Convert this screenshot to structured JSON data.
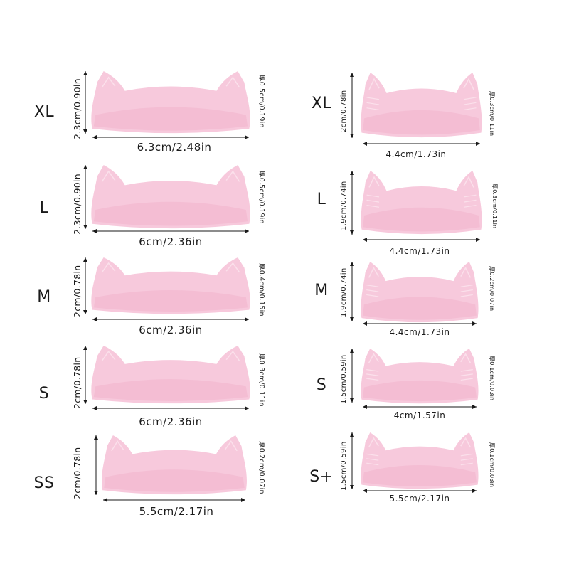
{
  "colors": {
    "pad_fill": "#f7c9dc",
    "pad_shade": "#f2b3cc",
    "pad_light": "#fbe0eb",
    "line": "#1a1a1a"
  },
  "left_items": [
    {
      "size": "XL",
      "width": "6.3cm/2.48in",
      "height": "2.3cm/0.90in",
      "thickness": "厚0.5cm/0.19in",
      "mark": "XL"
    },
    {
      "size": "L",
      "width": "6cm/2.36in",
      "height": "2.3cm/0.90in",
      "thickness": "厚0.5cm/0.19in",
      "mark": "L"
    },
    {
      "size": "M",
      "width": "6cm/2.36in",
      "height": "2cm/0.78in",
      "thickness": "厚0.4cm/0.15in",
      "mark": "M"
    },
    {
      "size": "S",
      "width": "6cm/2.36in",
      "height": "2cm/0.78in",
      "thickness": "厚0.3cm/0.11in",
      "mark": "S"
    },
    {
      "size": "SS",
      "width": "5.5cm/2.17in",
      "height": "2cm/0.78in",
      "thickness": "厚0.2cm/0.07in",
      "mark": "SS"
    }
  ],
  "right_items": [
    {
      "size": "XL",
      "width": "4.4cm/1.73in",
      "height": "2cm/0.78in",
      "thickness": "厚0.3cm/0.11in",
      "mark": "XL"
    },
    {
      "size": "L",
      "width": "4.4cm/1.73in",
      "height": "1.9cm/0.74in",
      "thickness": "厚0.3cm/0.11in",
      "mark": "L"
    },
    {
      "size": "M",
      "width": "4.4cm/1.73in",
      "height": "1.9cm/0.74in",
      "thickness": "厚0.2cm/0.07in",
      "mark": "M"
    },
    {
      "size": "S",
      "width": "4cm/1.57in",
      "height": "1.5cm/0.59in",
      "thickness": "厚0.1cm/0.03in",
      "mark": "S"
    },
    {
      "size": "S+",
      "width": "5.5cm/2.17in",
      "height": "1.5cm/0.59in",
      "thickness": "厚0.1cm/0.03in",
      "mark": "S+"
    }
  ]
}
